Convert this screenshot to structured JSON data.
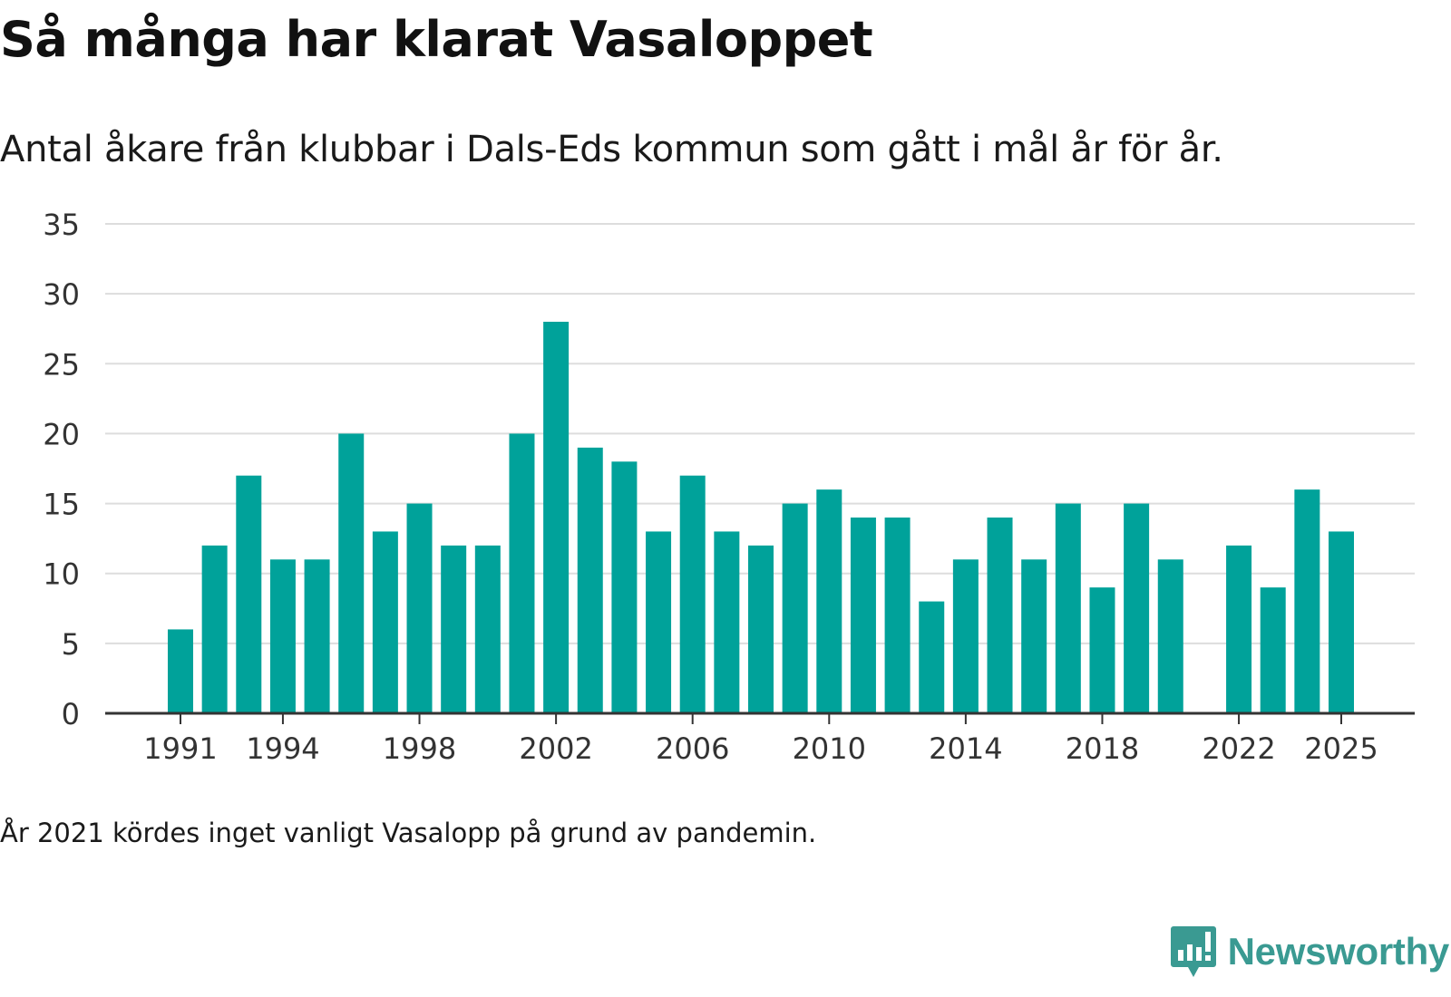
{
  "title": "Så många har klarat Vasaloppet",
  "subtitle": "Antal åkare från klubbar i Dals-Eds kommun som gått i mål år för år.",
  "footnote": "År 2021 kördes inget vanligt Vasalopp på grund av pandemin.",
  "brand": {
    "name": "Newsworthy",
    "color": "#3a9a92"
  },
  "colors": {
    "bar": "#00a29a",
    "grid": "#dddddd",
    "axis": "#333333"
  },
  "chart_data": {
    "type": "bar",
    "title": "Så många har klarat Vasaloppet",
    "xlabel": "",
    "ylabel": "",
    "ylim": [
      0,
      35
    ],
    "yticks": [
      0,
      5,
      10,
      15,
      20,
      25,
      30,
      35
    ],
    "xticks": [
      1991,
      1994,
      1998,
      2002,
      2006,
      2010,
      2014,
      2018,
      2022,
      2025
    ],
    "grid": true,
    "categories": [
      1991,
      1992,
      1993,
      1994,
      1995,
      1996,
      1997,
      1998,
      1999,
      2000,
      2001,
      2002,
      2003,
      2004,
      2005,
      2006,
      2007,
      2008,
      2009,
      2010,
      2011,
      2012,
      2013,
      2014,
      2015,
      2016,
      2017,
      2018,
      2019,
      2020,
      2021,
      2022,
      2023,
      2024,
      2025
    ],
    "values": [
      6,
      12,
      17,
      11,
      11,
      20,
      13,
      15,
      12,
      12,
      20,
      28,
      19,
      18,
      13,
      17,
      13,
      12,
      15,
      16,
      14,
      14,
      8,
      11,
      14,
      11,
      15,
      9,
      15,
      11,
      null,
      12,
      9,
      16,
      13
    ]
  }
}
